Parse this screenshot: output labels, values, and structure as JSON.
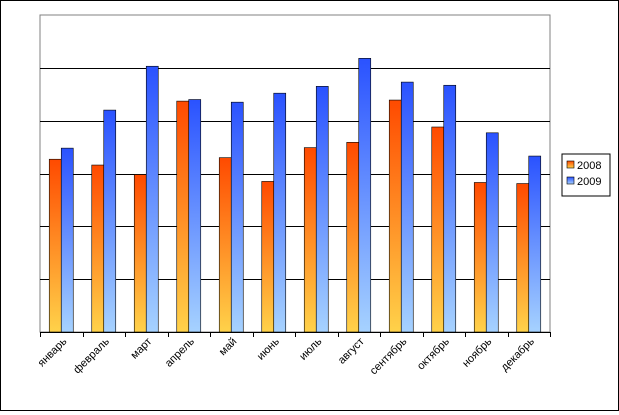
{
  "chart_data": {
    "type": "bar",
    "categories": [
      "январь",
      "февраль",
      "март",
      "апрель",
      "май",
      "июнь",
      "июль",
      "август",
      "сентябрь",
      "октябрь",
      "ноябрь",
      "декабрь"
    ],
    "series": [
      {
        "name": "2008",
        "values": [
          3.27,
          3.16,
          2.98,
          4.37,
          3.3,
          2.85,
          3.49,
          3.59,
          4.39,
          3.88,
          2.83,
          2.81
        ],
        "color_top": "#ff4a00",
        "color_bottom": "#ffd24a"
      },
      {
        "name": "2009",
        "values": [
          3.48,
          4.2,
          5.03,
          4.4,
          4.35,
          4.52,
          4.65,
          5.18,
          4.73,
          4.67,
          3.77,
          3.33
        ],
        "color_top": "#2a52ff",
        "color_bottom": "#a6d2ff"
      }
    ],
    "title": "",
    "xlabel": "",
    "ylabel": "",
    "ylim": [
      0,
      6
    ],
    "gridlines": 6,
    "grid": true,
    "legend": "right",
    "plot_background": "#ffffff",
    "axis_color": "#808080",
    "grid_color": "#000000"
  }
}
